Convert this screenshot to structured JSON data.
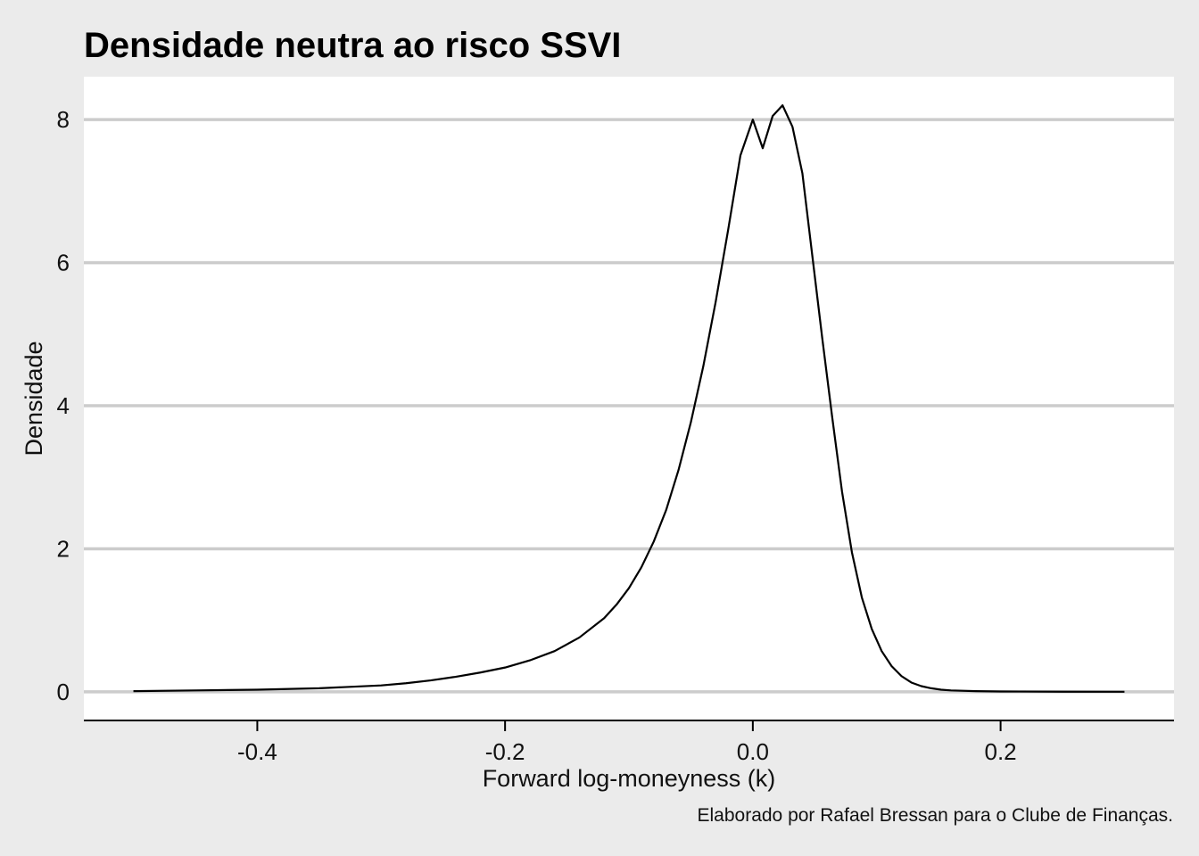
{
  "chart_data": {
    "type": "line",
    "title": "Densidade neutra ao risco SSVI",
    "xlabel": "Forward log-moneyness (k)",
    "ylabel": "Densidade",
    "caption": "Elaborado por Rafael Bressan para o Clube de Finanças.",
    "xlim": [
      -0.54,
      0.34
    ],
    "ylim": [
      -0.4,
      8.6
    ],
    "x_ticks": [
      -0.4,
      -0.2,
      0.0,
      0.2
    ],
    "x_tick_labels": [
      "-0.4",
      "-0.2",
      "0.0",
      "0.2"
    ],
    "y_ticks": [
      0,
      2,
      4,
      6,
      8
    ],
    "y_tick_labels": [
      "0",
      "2",
      "4",
      "6",
      "8"
    ],
    "grid": "horizontal",
    "colors": {
      "background": "#ebebeb",
      "panel": "#ffffff",
      "grid": "#cccccc",
      "line": "#000000"
    },
    "series": [
      {
        "x": [
          -0.5,
          -0.45,
          -0.4,
          -0.35,
          -0.3,
          -0.28,
          -0.26,
          -0.24,
          -0.22,
          -0.2,
          -0.18,
          -0.16,
          -0.14,
          -0.12,
          -0.11,
          -0.1,
          -0.09,
          -0.08,
          -0.07,
          -0.06,
          -0.05,
          -0.04,
          -0.03,
          -0.02,
          -0.01,
          0.0,
          0.008,
          0.016,
          0.024,
          0.032,
          0.04,
          0.048,
          0.056,
          0.064,
          0.072,
          0.08,
          0.088,
          0.096,
          0.104,
          0.112,
          0.12,
          0.128,
          0.136,
          0.144,
          0.152,
          0.16,
          0.18,
          0.2,
          0.25,
          0.3
        ],
        "values": [
          0.01,
          0.02,
          0.03,
          0.05,
          0.09,
          0.12,
          0.16,
          0.21,
          0.27,
          0.34,
          0.44,
          0.57,
          0.76,
          1.03,
          1.22,
          1.45,
          1.74,
          2.1,
          2.54,
          3.1,
          3.77,
          4.55,
          5.45,
          6.45,
          7.5,
          8.0,
          7.6,
          8.05,
          8.2,
          7.9,
          7.25,
          6.1,
          4.95,
          3.85,
          2.8,
          1.95,
          1.32,
          0.88,
          0.57,
          0.36,
          0.22,
          0.13,
          0.08,
          0.05,
          0.03,
          0.02,
          0.01,
          0.005,
          0.002,
          0.001
        ]
      }
    ]
  }
}
